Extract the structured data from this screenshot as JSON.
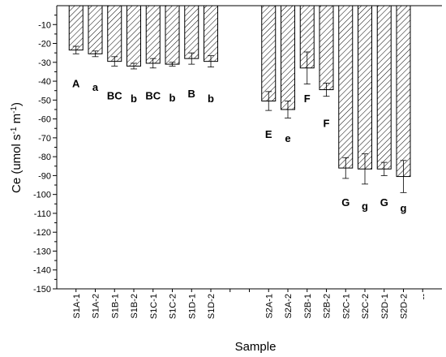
{
  "chart_data": {
    "type": "bar",
    "title": "",
    "xlabel": "Sample",
    "ylabel": "Ce (umol s -1 m-1)",
    "ylabel_parts": {
      "base": "Ce (umol s",
      "sup1": "-1",
      "mid": " m",
      "sup2": "-1",
      "end": ")"
    },
    "ylim": [
      -150,
      0
    ],
    "yticks": [
      -10,
      -20,
      -30,
      -40,
      -50,
      -60,
      -70,
      -80,
      -90,
      -100,
      -110,
      -120,
      -130,
      -140,
      -150
    ],
    "trailing_tick_label": "--",
    "grid": false,
    "legend": "none",
    "bar_fill": "#ffffff",
    "hatch_color": "#000000",
    "categories": [
      "S1A-1",
      "S1A-2",
      "S1B-1",
      "S1B-2",
      "S1C-1",
      "S1C-2",
      "S1D-1",
      "S1D-2",
      "S2A-1",
      "S2A-2",
      "S2B-1",
      "S2B-2",
      "S2C-1",
      "S2C-2",
      "S2D-1",
      "S2D-2"
    ],
    "values": [
      -23.5,
      -25.5,
      -29.5,
      -32,
      -30.5,
      -31,
      -28,
      -29.5,
      -50.5,
      -55,
      -33,
      -44.5,
      -86,
      -86.5,
      -86.5,
      -90.5
    ],
    "errors": [
      2,
      1.5,
      2.5,
      1.5,
      2.5,
      1,
      3,
      3,
      5,
      4.5,
      8.5,
      3.5,
      5.5,
      8,
      3.5,
      8.5
    ],
    "letters": [
      "A",
      "a",
      "BC",
      "b",
      "BC",
      "b",
      "B",
      "b",
      "E",
      "e",
      "F",
      "F",
      "G",
      "g",
      "G",
      "g"
    ],
    "letter_values": [
      -41,
      -43,
      -47.5,
      -49,
      -47.5,
      -48.5,
      -46.5,
      -49,
      -68,
      -70,
      -49,
      -62,
      -104,
      -106,
      -104,
      -107
    ]
  }
}
